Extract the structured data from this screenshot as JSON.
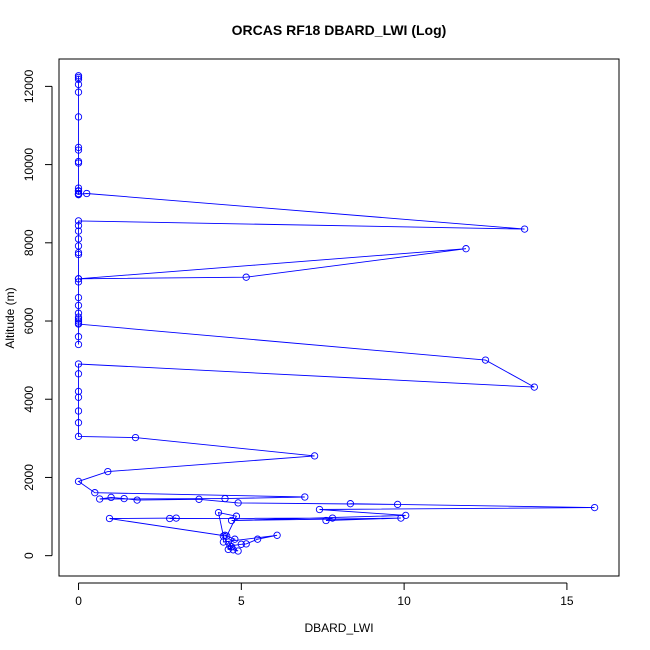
{
  "chart_data": {
    "type": "scatter",
    "title": "ORCAS RF18 DBARD_LWI (Log)",
    "xlabel": "DBARD_LWI",
    "ylabel": "Altitude (m)",
    "xlim": [
      -0.6,
      16.6
    ],
    "ylim": [
      -520,
      12700
    ],
    "xticks": [
      0,
      5,
      10,
      15
    ],
    "xtick_labels": [
      "0",
      "5",
      "10",
      "15"
    ],
    "yticks": [
      0,
      2000,
      4000,
      6000,
      8000,
      10000,
      12000
    ],
    "ytick_labels": [
      "0",
      "2000",
      "4000",
      "6000",
      "8000",
      "10000",
      "12000"
    ],
    "grid": false,
    "series": [
      {
        "color": "#0000ff",
        "marker": "open-circle",
        "x": [
          0.0,
          0.0,
          0.0,
          0.0,
          0.0,
          0.0,
          0.0,
          0.0,
          0.0,
          0.0,
          0.0,
          0.0,
          0.0,
          0.0,
          0.0,
          0.0,
          0.0,
          0.25,
          13.7,
          0.0,
          0.0,
          0.0,
          0.0,
          0.0,
          0.0,
          0.0,
          0.0,
          11.9,
          5.15,
          0.0,
          0.0,
          0.0,
          0.0,
          0.0,
          0.0,
          0.0,
          0.0,
          0.0,
          0.0,
          0.0,
          0.0,
          12.5,
          14.0,
          0.0,
          0.0,
          0.0,
          0.0,
          0.0,
          0.0,
          0.0,
          1.75,
          7.25,
          0.9,
          0.0,
          0.5,
          6.95,
          4.5,
          0.65,
          1.0,
          1.4,
          1.8,
          3.7,
          4.9,
          9.8,
          8.35,
          15.85,
          7.4,
          10.05,
          4.7,
          9.9,
          7.6,
          7.8,
          2.8,
          3.0,
          0.95,
          4.55,
          4.85,
          4.3,
          4.45,
          4.45,
          6.1,
          5.5,
          5.15,
          5.0,
          4.65,
          4.9,
          4.75,
          4.6,
          4.7,
          4.6,
          4.8,
          4.5
        ],
        "y": [
          12270,
          12230,
          12180,
          12050,
          11850,
          11220,
          10440,
          10370,
          10080,
          10040,
          9400,
          9330,
          9320,
          9260,
          9240,
          9230,
          9240,
          9260,
          8350,
          8560,
          8440,
          8300,
          8100,
          7920,
          7750,
          7700,
          7080,
          7850,
          7120,
          7080,
          7000,
          6600,
          6400,
          6200,
          6100,
          6050,
          6000,
          5950,
          5600,
          5400,
          5920,
          5000,
          4310,
          4900,
          4650,
          4200,
          4050,
          3700,
          3400,
          3050,
          3020,
          2550,
          2150,
          1900,
          1610,
          1500,
          1460,
          1450,
          1490,
          1460,
          1420,
          1440,
          1350,
          1310,
          1330,
          1230,
          1180,
          1030,
          900,
          960,
          900,
          960,
          950,
          960,
          950,
          500,
          1010,
          1100,
          500,
          350,
          520,
          420,
          300,
          290,
          250,
          120,
          150,
          160,
          230,
          350,
          420,
          520
        ]
      }
    ]
  }
}
